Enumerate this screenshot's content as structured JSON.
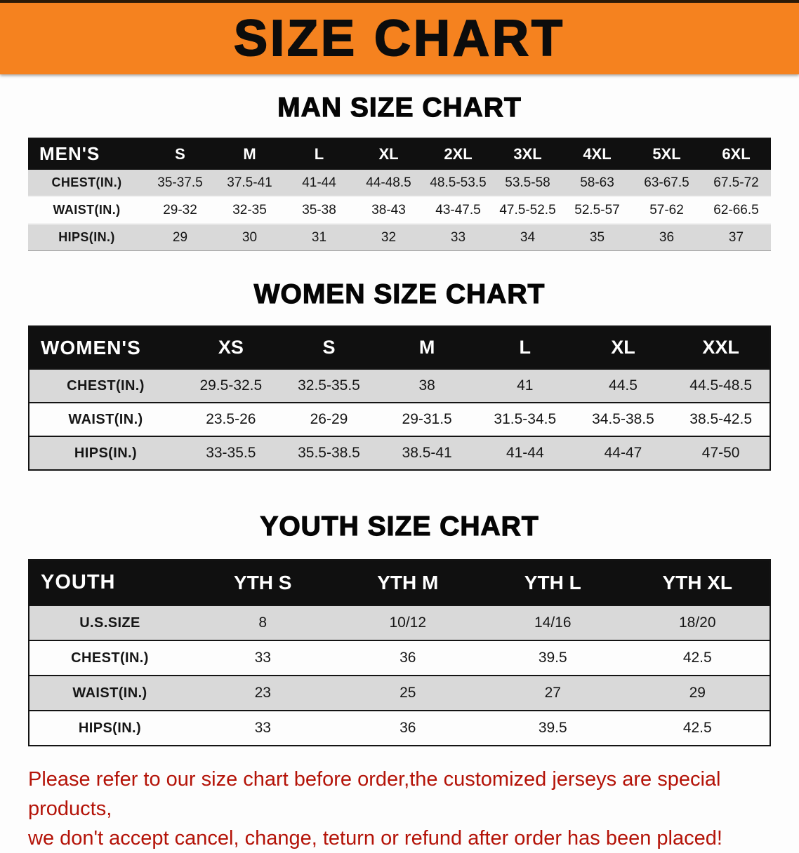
{
  "banner": {
    "title": "SIZE CHART"
  },
  "sections": [
    {
      "heading": "MAN SIZE CHART",
      "table": {
        "header": [
          "MEN'S",
          "S",
          "M",
          "L",
          "XL",
          "2XL",
          "3XL",
          "4XL",
          "5XL",
          "6XL"
        ],
        "rows": [
          [
            "CHEST(IN.)",
            "35-37.5",
            "37.5-41",
            "41-44",
            "44-48.5",
            "48.5-53.5",
            "53.5-58",
            "58-63",
            "63-67.5",
            "67.5-72"
          ],
          [
            "WAIST(IN.)",
            "29-32",
            "32-35",
            "35-38",
            "38-43",
            "43-47.5",
            "47.5-52.5",
            "52.5-57",
            "57-62",
            "62-66.5"
          ],
          [
            "HIPS(IN.)",
            "29",
            "30",
            "31",
            "32",
            "33",
            "34",
            "35",
            "36",
            "37"
          ]
        ]
      }
    },
    {
      "heading": "WOMEN SIZE CHART",
      "table": {
        "header": [
          "WOMEN'S",
          "XS",
          "S",
          "M",
          "L",
          "XL",
          "XXL"
        ],
        "rows": [
          [
            "CHEST(IN.)",
            "29.5-32.5",
            "32.5-35.5",
            "38",
            "41",
            "44.5",
            "44.5-48.5"
          ],
          [
            "WAIST(IN.)",
            "23.5-26",
            "26-29",
            "29-31.5",
            "31.5-34.5",
            "34.5-38.5",
            "38.5-42.5"
          ],
          [
            "HIPS(IN.)",
            "33-35.5",
            "35.5-38.5",
            "38.5-41",
            "41-44",
            "44-47",
            "47-50"
          ]
        ]
      }
    },
    {
      "heading": "YOUTH SIZE CHART",
      "table": {
        "header": [
          "YOUTH",
          "YTH S",
          "YTH M",
          "YTH L",
          "YTH XL"
        ],
        "rows": [
          [
            "U.S.SIZE",
            "8",
            "10/12",
            "14/16",
            "18/20"
          ],
          [
            "CHEST(IN.)",
            "33",
            "36",
            "39.5",
            "42.5"
          ],
          [
            "WAIST(IN.)",
            "23",
            "25",
            "27",
            "29"
          ],
          [
            "HIPS(IN.)",
            "33",
            "36",
            "39.5",
            "42.5"
          ]
        ]
      }
    }
  ],
  "note": {
    "line1": "Please refer to our size chart before order,the customized jerseys are special products,",
    "line2": "we don't accept cancel, change, teturn or refund after order has been placed!"
  },
  "colors": {
    "banner_bg": "#f5821f",
    "header_bg": "#101010",
    "row_gray": "#d9d9d9",
    "note_red": "#b41308"
  }
}
